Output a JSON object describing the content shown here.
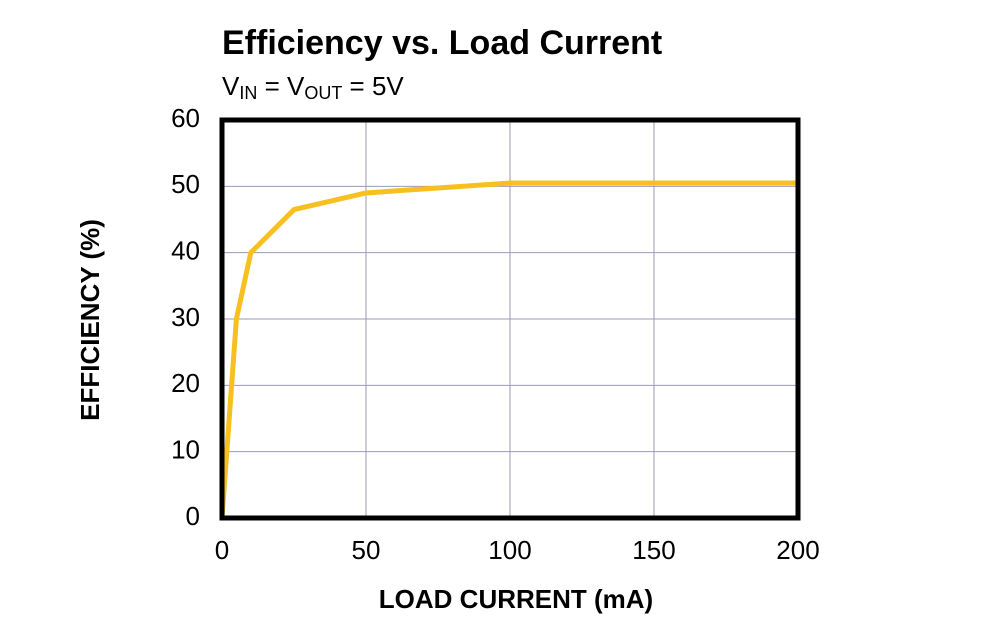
{
  "chart_data": {
    "type": "line",
    "title": "Efficiency vs. Load Current",
    "subtitle": [
      "V",
      "IN",
      " = V",
      "OUT",
      " = 5V"
    ],
    "x_label": "LOAD CURRENT (mA)",
    "y_label": "EFFICIENCY (%)",
    "x": [
      0,
      5,
      10,
      25,
      50,
      100,
      200
    ],
    "series": [
      {
        "name": "Efficiency",
        "color": "#f7c01e",
        "values": [
          0,
          30,
          40,
          46.5,
          49,
          50.5,
          50.5
        ]
      }
    ],
    "xlim": [
      0,
      200
    ],
    "xticks": [
      0,
      50,
      100,
      150,
      200
    ],
    "ylim": [
      0,
      60
    ],
    "yticks": [
      0,
      10,
      20,
      30,
      40,
      50,
      60
    ],
    "grid": true
  }
}
